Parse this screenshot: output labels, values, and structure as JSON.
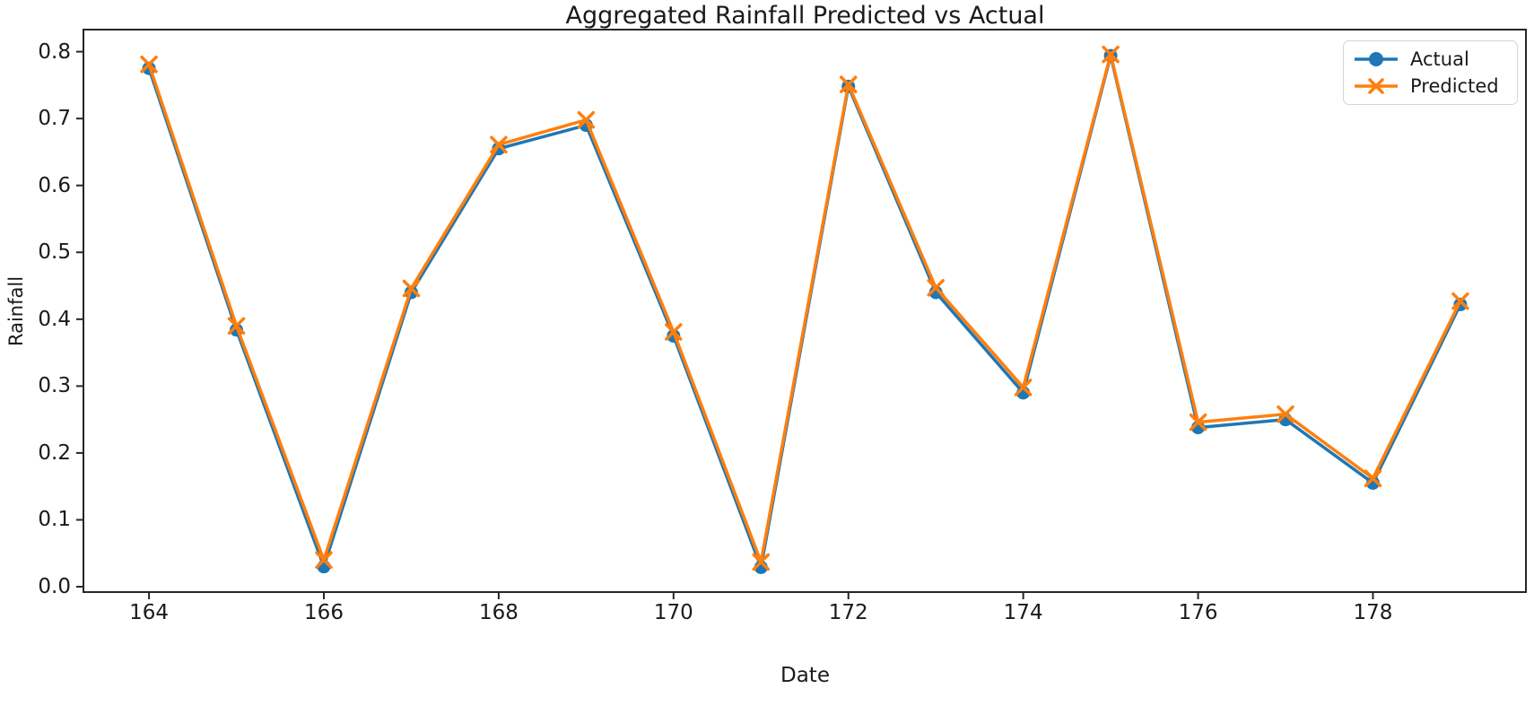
{
  "chart_data": {
    "type": "line",
    "title": "Aggregated Rainfall Predicted vs Actual",
    "xlabel": "Date",
    "ylabel": "Rainfall",
    "x": [
      164,
      165,
      166,
      167,
      168,
      169,
      170,
      171,
      172,
      173,
      174,
      175,
      176,
      177,
      178,
      179
    ],
    "series": [
      {
        "name": "Actual",
        "color": "#1f77b4",
        "marker": "circle",
        "values": [
          0.775,
          0.384,
          0.03,
          0.44,
          0.655,
          0.69,
          0.375,
          0.029,
          0.748,
          0.44,
          0.29,
          0.794,
          0.238,
          0.25,
          0.155,
          0.422
        ]
      },
      {
        "name": "Predicted",
        "color": "#ff7f0e",
        "marker": "x",
        "values": [
          0.781,
          0.39,
          0.04,
          0.446,
          0.661,
          0.698,
          0.381,
          0.037,
          0.751,
          0.447,
          0.298,
          0.796,
          0.246,
          0.258,
          0.162,
          0.427
        ]
      }
    ],
    "xticks": [
      164,
      166,
      168,
      170,
      172,
      174,
      176,
      178
    ],
    "ytick_labels": [
      "0.0",
      "0.1",
      "0.2",
      "0.3",
      "0.4",
      "0.5",
      "0.6",
      "0.7",
      "0.8"
    ],
    "yticks": [
      0.0,
      0.1,
      0.2,
      0.3,
      0.4,
      0.5,
      0.6,
      0.7,
      0.8
    ],
    "xlim": [
      163.25,
      179.75
    ],
    "ylim": [
      -0.008,
      0.833
    ],
    "grid": false,
    "legend_position": "upper right"
  }
}
